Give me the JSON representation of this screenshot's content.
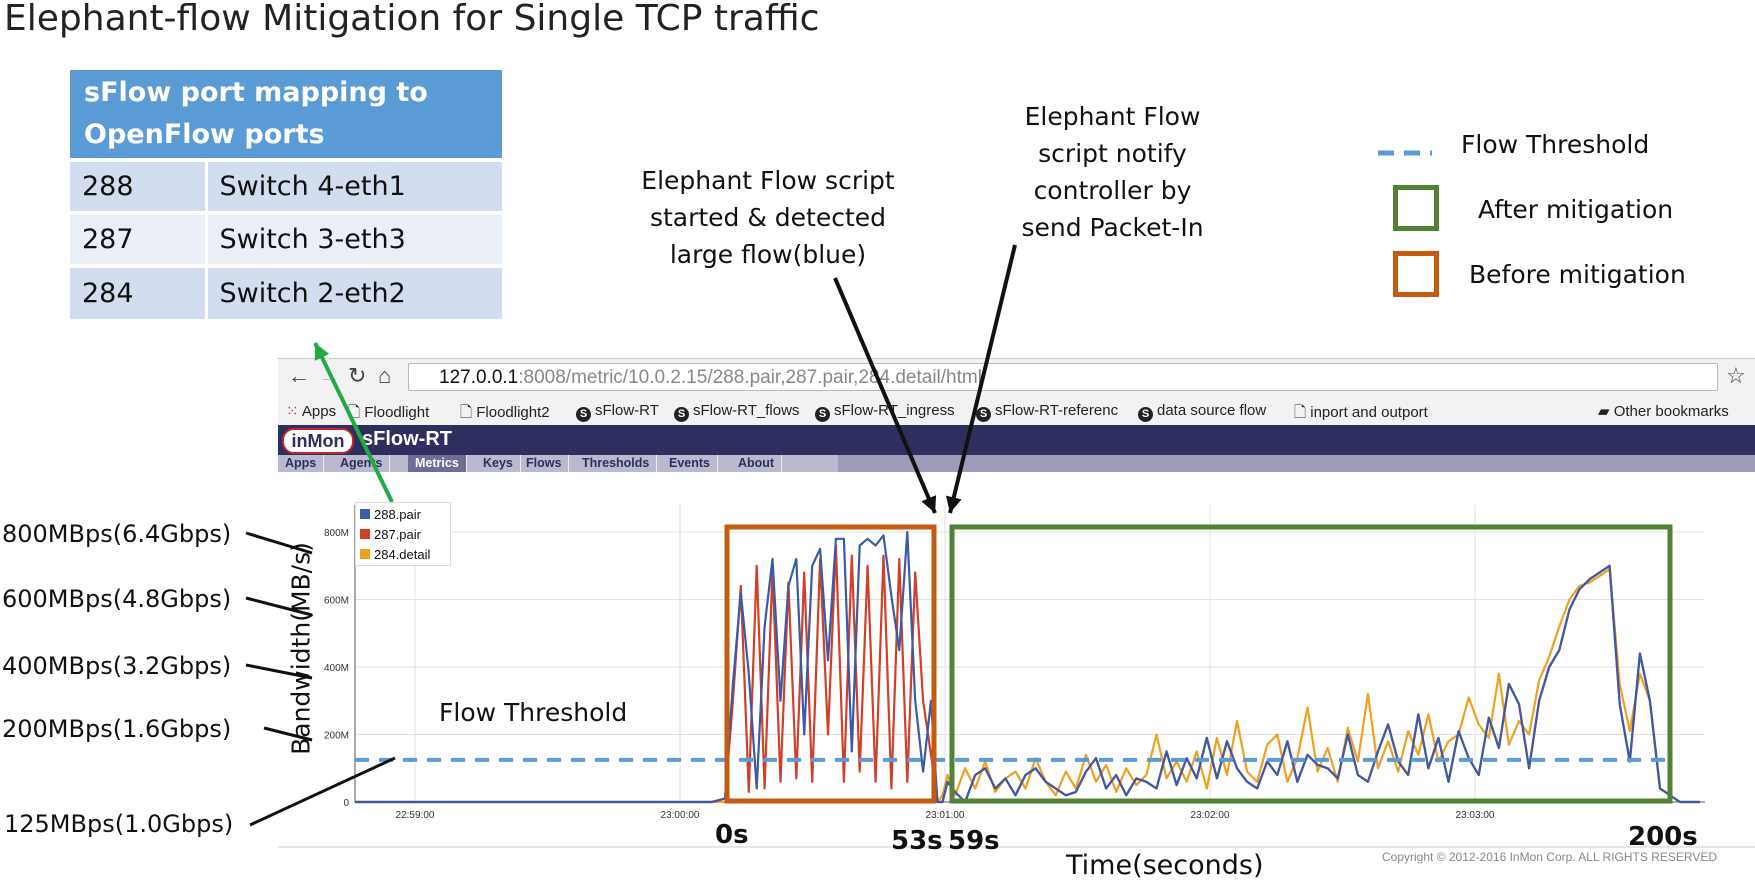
{
  "slide": {
    "title": "Elephant-flow Mitigation for Single TCP traffic"
  },
  "mapping_table": {
    "header": "sFlow port mapping to OpenFlow ports",
    "rows": [
      {
        "port": "288",
        "switch": "Switch 4-eth1"
      },
      {
        "port": "287",
        "switch": "Switch 3-eth3"
      },
      {
        "port": "284",
        "switch": "Switch 2-eth2"
      }
    ]
  },
  "annotations": {
    "script_started": "Elephant Flow script started & detected large flow(blue)",
    "script_notify": "Elephant Flow script notify controller by send Packet-In",
    "flow_threshold": "Flow Threshold"
  },
  "legend_right": {
    "threshold": "Flow Threshold",
    "after": "After mitigation",
    "before": "Before mitigation",
    "after_color": "#548235",
    "before_color": "#c55a11",
    "threshold_color": "#5b9bd5"
  },
  "left_labels": [
    "800MBps(6.4Gbps)",
    "600MBps(4.8Gbps)",
    "400MBps(3.2Gbps)",
    "200MBps(1.6Gbps)",
    "125MBps(1.0Gbps)"
  ],
  "browser": {
    "url_host": "127.0.0.1",
    "url_rest": ":8008/metric/10.0.2.15/288.pair,287.pair,284.detail/html",
    "bookmarks": [
      "Apps",
      "Floodlight",
      "Floodlight2",
      "sFlow-RT",
      "sFlow-RT_flows",
      "sFlow-RT_ingress",
      "sFlow-RT-referenc",
      "data source flow",
      "inport and outport",
      "Other bookmarks"
    ],
    "logo": "inMon",
    "app_name": "sFlow-RT",
    "tabs": [
      "Apps",
      "Agents",
      "Metrics",
      "Keys",
      "Flows",
      "Thresholds",
      "Events",
      "About"
    ],
    "active_tab": "Metrics"
  },
  "time_markers": [
    "0s",
    "53s",
    "59s",
    "200s"
  ],
  "xlabel_bottom": "Time(seconds)",
  "copyright": "Copyright © 2012-2016 InMon Corp. ALL RIGHTS RESERVED",
  "chart_data": {
    "type": "line",
    "ylabel": "Bandwidth(MB/s)",
    "xlabel": "Time(seconds)",
    "x_ticks": [
      "22:59:00",
      "23:00:00",
      "23:01:00",
      "23:02:00",
      "23:03:00"
    ],
    "y_ticks": [
      "0",
      "200M",
      "400M",
      "600M",
      "800M"
    ],
    "ylim": [
      0,
      880
    ],
    "xlim_seconds": [
      -140,
      208
    ],
    "threshold": 125,
    "series": [
      {
        "name": "288.pair",
        "color": "#3b5aa8",
        "x": [
          -140,
          -5,
          0,
          2,
          4,
          6,
          8,
          10,
          12,
          14,
          16,
          18,
          20,
          22,
          24,
          26,
          28,
          30,
          32,
          34,
          36,
          38,
          40,
          42,
          44,
          46,
          48,
          50,
          52,
          54,
          56,
          58,
          60,
          62,
          64,
          66,
          68,
          70,
          72,
          74,
          76,
          78,
          80,
          82,
          84,
          86,
          88,
          90,
          92,
          94,
          96,
          98,
          100,
          102,
          104,
          106,
          108,
          110,
          112,
          114,
          116,
          118,
          120,
          122,
          124,
          126,
          128,
          130,
          132,
          134,
          136,
          138,
          140,
          142,
          144,
          146,
          148,
          150,
          152,
          154,
          156,
          158,
          160,
          162,
          164,
          166,
          168,
          170,
          172,
          174,
          176,
          178,
          180,
          182,
          184,
          186,
          188,
          190,
          192,
          194,
          196,
          198,
          200,
          204,
          208
        ],
        "y": [
          0,
          0,
          10,
          350,
          620,
          380,
          40,
          520,
          720,
          300,
          640,
          720,
          200,
          700,
          750,
          420,
          780,
          780,
          150,
          760,
          780,
          760,
          790,
          610,
          450,
          800,
          300,
          90,
          300,
          0,
          0,
          60,
          30,
          0,
          80,
          100,
          40,
          70,
          20,
          80,
          100,
          60,
          40,
          20,
          30,
          90,
          130,
          40,
          80,
          20,
          70,
          60,
          40,
          150,
          50,
          130,
          70,
          190,
          70,
          180,
          100,
          60,
          40,
          120,
          80,
          180,
          60,
          140,
          110,
          100,
          70,
          200,
          80,
          60,
          150,
          230,
          120,
          80,
          260,
          100,
          190,
          60,
          210,
          130,
          80,
          250,
          160,
          350,
          290,
          100,
          300,
          400,
          450,
          570,
          630,
          660,
          680,
          700,
          290,
          120,
          440,
          300,
          40,
          0,
          0
        ]
      },
      {
        "name": "287.pair",
        "color": "#d13f28",
        "x": [
          -140,
          -5,
          0,
          2,
          4,
          6,
          8,
          10,
          12,
          14,
          16,
          18,
          20,
          22,
          24,
          26,
          28,
          30,
          32,
          34,
          36,
          38,
          40,
          42,
          44,
          46,
          48,
          50,
          52,
          54,
          56,
          58,
          60,
          62,
          64,
          66,
          68,
          70,
          72,
          74,
          76,
          78,
          80,
          82,
          84,
          86,
          88,
          90,
          92,
          94,
          96,
          98,
          100,
          102,
          104,
          106,
          108,
          110,
          112,
          114,
          116,
          118,
          120,
          122,
          124,
          126,
          128,
          130,
          132,
          134,
          136,
          138,
          140,
          142,
          144,
          146,
          148,
          150,
          152,
          154,
          156,
          158,
          160,
          162,
          164,
          166,
          168,
          170,
          172,
          174,
          176,
          178,
          180,
          182,
          184,
          186,
          188,
          190,
          192,
          194,
          196,
          198,
          200,
          204,
          208
        ],
        "y": [
          0,
          0,
          10,
          300,
          640,
          30,
          700,
          40,
          690,
          60,
          650,
          70,
          680,
          60,
          720,
          200,
          760,
          60,
          730,
          90,
          700,
          60,
          730,
          40,
          720,
          60,
          680,
          300,
          140,
          0,
          0,
          60,
          30,
          0,
          80,
          100,
          40,
          70,
          20,
          80,
          100,
          60,
          40,
          20,
          30,
          90,
          130,
          40,
          80,
          20,
          70,
          60,
          40,
          150,
          50,
          130,
          70,
          190,
          70,
          180,
          100,
          60,
          40,
          120,
          80,
          180,
          60,
          140,
          110,
          100,
          70,
          200,
          80,
          60,
          150,
          230,
          120,
          80,
          260,
          100,
          190,
          60,
          210,
          130,
          80,
          250,
          160,
          350,
          290,
          100,
          300,
          400,
          450,
          570,
          630,
          660,
          680,
          700,
          290,
          120,
          440,
          300,
          40,
          0,
          0
        ]
      },
      {
        "name": "284.detail",
        "color": "#f0a020",
        "x": [
          -140,
          -5,
          0,
          2,
          4,
          6,
          8,
          10,
          12,
          14,
          16,
          18,
          20,
          22,
          24,
          26,
          28,
          30,
          32,
          34,
          36,
          38,
          40,
          42,
          44,
          46,
          48,
          50,
          52,
          54,
          56,
          58,
          60,
          62,
          64,
          66,
          68,
          70,
          72,
          74,
          76,
          78,
          80,
          82,
          84,
          86,
          88,
          90,
          92,
          94,
          96,
          98,
          100,
          102,
          104,
          106,
          108,
          110,
          112,
          114,
          116,
          118,
          120,
          122,
          124,
          126,
          128,
          130,
          132,
          134,
          136,
          138,
          140,
          142,
          144,
          146,
          148,
          150,
          152,
          154,
          156,
          158,
          160,
          162,
          164,
          166,
          168,
          170,
          172,
          174,
          176,
          178,
          180,
          182,
          184,
          186,
          188,
          190,
          192,
          194,
          196,
          198,
          200,
          204,
          208
        ],
        "y": [
          0,
          0,
          0,
          0,
          0,
          0,
          0,
          0,
          0,
          0,
          0,
          0,
          0,
          0,
          0,
          0,
          0,
          0,
          0,
          0,
          0,
          0,
          0,
          0,
          0,
          0,
          0,
          0,
          0,
          0,
          20,
          80,
          20,
          100,
          40,
          120,
          30,
          70,
          90,
          40,
          130,
          60,
          20,
          90,
          40,
          140,
          60,
          110,
          30,
          100,
          50,
          80,
          200,
          70,
          120,
          60,
          150,
          40,
          190,
          80,
          240,
          90,
          60,
          170,
          200,
          60,
          130,
          280,
          90,
          160,
          60,
          220,
          120,
          320,
          100,
          180,
          90,
          210,
          140,
          260,
          120,
          180,
          200,
          310,
          230,
          190,
          380,
          170,
          240,
          200,
          360,
          430,
          520,
          600,
          640,
          650,
          670,
          690,
          350,
          210,
          380,
          300,
          40,
          0,
          0
        ]
      }
    ]
  }
}
